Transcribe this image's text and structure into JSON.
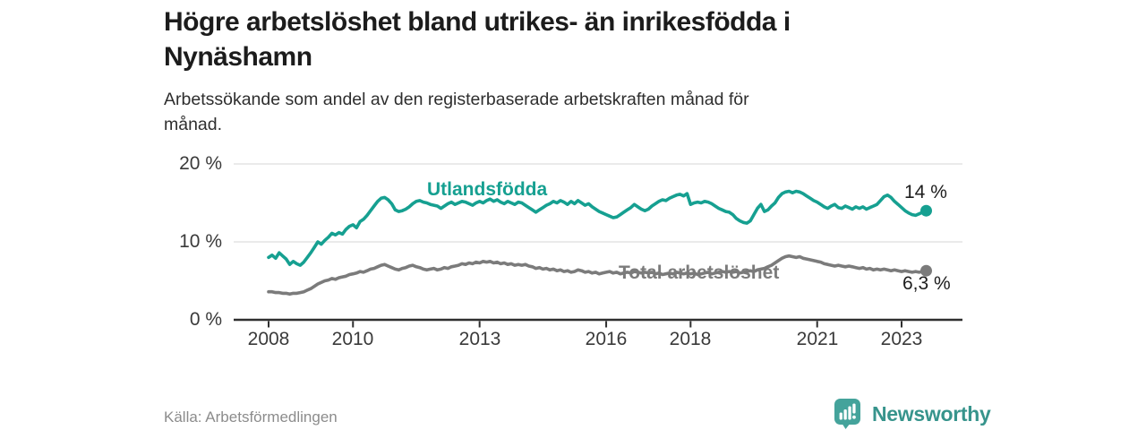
{
  "header": {
    "title_line1": "Högre arbetslöshet bland utrikes- än inrikesfödda i",
    "title_line2": "Nynäshamn",
    "subtitle_line1": "Arbetssökande som andel av den registerbaserade arbetskraften månad för",
    "subtitle_line2": "månad."
  },
  "footer": {
    "source": "Källa: Arbetsförmedlingen",
    "brand": "Newsworthy"
  },
  "colors": {
    "series_utlandsfodda": "#16a091",
    "series_total": "#7b7b7b",
    "value_label": "#1d1d1d",
    "axis_text": "#3a3a3a",
    "gridline": "#e3e3e3",
    "axis_line": "#2f2f2f",
    "logo_icon": "#44a39b",
    "logo_text": "#37948c"
  },
  "chart_data": {
    "type": "line",
    "title": "Högre arbetslöshet bland utrikes- än inrikesfödda i Nynäshamn",
    "subtitle": "Arbetssökande som andel av den registerbaserade arbetskraften månad för månad.",
    "x_unit": "month",
    "x_start": "2008-01",
    "x_end": "2023-08",
    "ylim": [
      0,
      20
    ],
    "grid": "horizontal-only",
    "legend": "inline-labels",
    "y_ticks": [
      {
        "value": 0,
        "label": "0 %"
      },
      {
        "value": 10,
        "label": "10 %"
      },
      {
        "value": 20,
        "label": "20 %"
      }
    ],
    "x_ticks": [
      {
        "year": 2008,
        "label": "2008"
      },
      {
        "year": 2010,
        "label": "2010"
      },
      {
        "year": 2013,
        "label": "2013"
      },
      {
        "year": 2016,
        "label": "2016"
      },
      {
        "year": 2018,
        "label": "2018"
      },
      {
        "year": 2021,
        "label": "2021"
      },
      {
        "year": 2023,
        "label": "2023"
      }
    ],
    "series": [
      {
        "name": "Utlandsfödda",
        "color": "#16a091",
        "end_label": "14 %",
        "end_value": 14,
        "values": [
          8.0,
          8.3,
          7.9,
          8.6,
          8.2,
          7.8,
          7.1,
          7.5,
          7.2,
          7.0,
          7.4,
          8.0,
          8.6,
          9.3,
          10.0,
          9.7,
          10.2,
          10.6,
          11.1,
          10.9,
          11.2,
          11.0,
          11.6,
          12.0,
          12.2,
          11.8,
          12.6,
          12.9,
          13.4,
          14.0,
          14.6,
          15.2,
          15.6,
          15.7,
          15.4,
          14.9,
          14.1,
          13.9,
          14.0,
          14.2,
          14.5,
          14.9,
          15.2,
          15.3,
          15.1,
          15.0,
          14.8,
          14.7,
          14.6,
          14.3,
          14.6,
          14.9,
          15.1,
          14.8,
          15.0,
          15.2,
          15.1,
          14.9,
          14.7,
          15.0,
          15.2,
          15.0,
          15.3,
          15.5,
          15.2,
          15.4,
          15.1,
          14.9,
          15.2,
          15.0,
          14.8,
          15.1,
          15.0,
          14.7,
          14.4,
          14.1,
          13.8,
          14.1,
          14.4,
          14.7,
          14.9,
          15.2,
          15.0,
          15.3,
          15.1,
          14.8,
          15.2,
          14.9,
          15.3,
          15.0,
          14.7,
          14.9,
          14.5,
          14.2,
          13.9,
          13.7,
          13.5,
          13.3,
          13.1,
          13.2,
          13.5,
          13.8,
          14.1,
          14.4,
          14.8,
          14.5,
          14.2,
          14.0,
          14.2,
          14.6,
          14.9,
          15.2,
          15.4,
          15.3,
          15.6,
          15.8,
          16.0,
          16.1,
          15.9,
          16.2,
          14.8,
          15.0,
          15.1,
          15.0,
          15.2,
          15.1,
          14.9,
          14.6,
          14.3,
          14.1,
          13.9,
          13.8,
          13.5,
          13.0,
          12.7,
          12.5,
          12.4,
          12.7,
          13.5,
          14.3,
          14.8,
          13.9,
          14.1,
          14.6,
          15.0,
          15.7,
          16.2,
          16.4,
          16.5,
          16.3,
          16.5,
          16.4,
          16.2,
          15.9,
          15.6,
          15.3,
          15.1,
          14.8,
          14.5,
          14.3,
          14.6,
          14.8,
          14.4,
          14.3,
          14.6,
          14.4,
          14.2,
          14.5,
          14.3,
          14.5,
          14.2,
          14.4,
          14.6,
          14.8,
          15.3,
          15.8,
          16.0,
          15.7,
          15.2,
          14.8,
          14.4,
          14.0,
          13.7,
          13.5,
          13.4,
          13.6,
          13.8,
          14.0
        ]
      },
      {
        "name": "Total arbetslöshet",
        "color": "#7b7b7b",
        "end_label": "6,3 %",
        "end_value": 6.3,
        "values": [
          3.6,
          3.6,
          3.5,
          3.5,
          3.4,
          3.4,
          3.3,
          3.4,
          3.4,
          3.5,
          3.6,
          3.8,
          4.0,
          4.3,
          4.6,
          4.8,
          5.0,
          5.1,
          5.3,
          5.2,
          5.4,
          5.5,
          5.6,
          5.8,
          5.9,
          6.0,
          6.2,
          6.1,
          6.3,
          6.5,
          6.6,
          6.8,
          7.0,
          7.1,
          6.9,
          6.7,
          6.5,
          6.4,
          6.6,
          6.7,
          6.9,
          7.0,
          6.8,
          6.7,
          6.5,
          6.4,
          6.5,
          6.6,
          6.4,
          6.5,
          6.7,
          6.6,
          6.8,
          6.9,
          7.0,
          7.2,
          7.1,
          7.3,
          7.2,
          7.4,
          7.3,
          7.5,
          7.4,
          7.5,
          7.3,
          7.4,
          7.2,
          7.3,
          7.1,
          7.2,
          7.0,
          7.1,
          7.0,
          7.1,
          6.9,
          6.8,
          6.6,
          6.7,
          6.5,
          6.6,
          6.4,
          6.5,
          6.3,
          6.4,
          6.2,
          6.3,
          6.1,
          6.2,
          6.4,
          6.3,
          6.1,
          6.2,
          6.0,
          6.1,
          5.9,
          6.0,
          6.1,
          6.2,
          6.0,
          6.1,
          5.9,
          6.0,
          6.1,
          6.0,
          6.2,
          6.1,
          6.0,
          6.1,
          6.0,
          6.1,
          5.9,
          6.0,
          5.8,
          5.9,
          6.0,
          5.9,
          6.1,
          6.0,
          5.9,
          6.0,
          5.9,
          6.0,
          5.8,
          5.9,
          6.0,
          6.1,
          5.9,
          6.0,
          6.1,
          6.2,
          6.1,
          6.2,
          6.1,
          6.2,
          6.0,
          6.1,
          6.2,
          6.3,
          6.2,
          6.4,
          6.5,
          6.6,
          6.8,
          7.0,
          7.3,
          7.6,
          7.9,
          8.1,
          8.2,
          8.1,
          8.0,
          8.1,
          7.9,
          7.8,
          7.7,
          7.6,
          7.5,
          7.4,
          7.2,
          7.1,
          7.0,
          6.9,
          7.0,
          6.9,
          6.8,
          6.9,
          6.8,
          6.7,
          6.6,
          6.7,
          6.5,
          6.6,
          6.4,
          6.5,
          6.4,
          6.5,
          6.4,
          6.3,
          6.4,
          6.3,
          6.2,
          6.3,
          6.2,
          6.1,
          6.2,
          6.1,
          6.2,
          6.3
        ]
      }
    ]
  }
}
